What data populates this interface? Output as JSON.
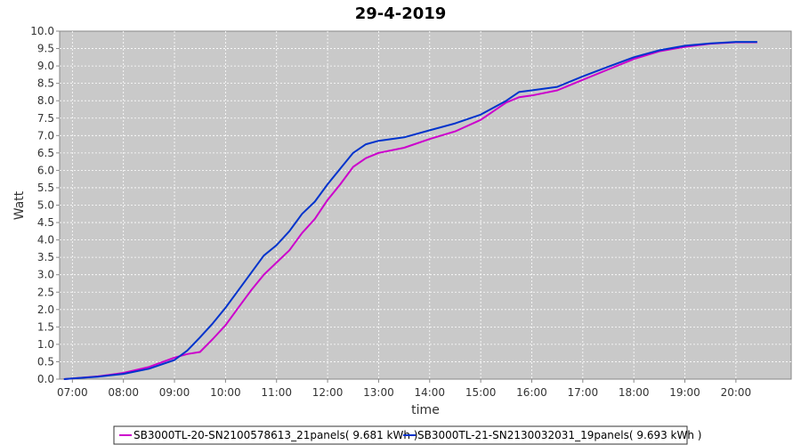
{
  "chart_data": {
    "type": "line",
    "title": "29-4-2019",
    "xlabel": "time",
    "ylabel": "Watt",
    "ylim": [
      0,
      10.0
    ],
    "xlim": [
      "06:45",
      "21:05"
    ],
    "grid": true,
    "legend_position": "bottom",
    "background_color": "#c9c9c9",
    "y_ticks": [
      "0.0",
      "0.5",
      "1.0",
      "1.5",
      "2.0",
      "2.5",
      "3.0",
      "3.5",
      "4.0",
      "4.5",
      "5.0",
      "5.5",
      "6.0",
      "6.5",
      "7.0",
      "7.5",
      "8.0",
      "8.5",
      "9.0",
      "9.5",
      "10.0"
    ],
    "x_ticks": [
      "07:00",
      "08:00",
      "09:00",
      "10:00",
      "11:00",
      "12:00",
      "13:00",
      "14:00",
      "15:00",
      "16:00",
      "17:00",
      "18:00",
      "19:00",
      "20:00"
    ],
    "series": [
      {
        "name": "SB3000TL-20-SN2100578613_21panels( 9.681 kWh )",
        "color": "#cc00cc",
        "x": [
          "06:50",
          "07:00",
          "07:30",
          "08:00",
          "08:30",
          "09:00",
          "09:15",
          "09:30",
          "09:45",
          "10:00",
          "10:15",
          "10:30",
          "10:45",
          "11:00",
          "11:15",
          "11:30",
          "11:45",
          "12:00",
          "12:15",
          "12:30",
          "12:45",
          "13:00",
          "13:30",
          "14:00",
          "14:30",
          "15:00",
          "15:30",
          "15:45",
          "16:00",
          "16:30",
          "17:00",
          "17:30",
          "18:00",
          "18:30",
          "19:00",
          "19:30",
          "20:00",
          "20:25"
        ],
        "values": [
          0.0,
          0.02,
          0.08,
          0.18,
          0.35,
          0.62,
          0.72,
          0.78,
          1.15,
          1.55,
          2.05,
          2.55,
          3.0,
          3.35,
          3.7,
          4.2,
          4.6,
          5.15,
          5.6,
          6.1,
          6.35,
          6.5,
          6.65,
          6.9,
          7.12,
          7.45,
          7.95,
          8.1,
          8.15,
          8.3,
          8.6,
          8.9,
          9.2,
          9.42,
          9.55,
          9.64,
          9.68,
          9.68
        ]
      },
      {
        "name": "SB3000TL-21-SN2130032031_19panels( 9.693 kWh )",
        "color": "#0033cc",
        "x": [
          "06:50",
          "07:00",
          "07:30",
          "08:00",
          "08:30",
          "09:00",
          "09:15",
          "09:30",
          "09:45",
          "10:00",
          "10:15",
          "10:30",
          "10:45",
          "11:00",
          "11:15",
          "11:30",
          "11:45",
          "12:00",
          "12:15",
          "12:30",
          "12:45",
          "13:00",
          "13:30",
          "14:00",
          "14:30",
          "15:00",
          "15:30",
          "15:45",
          "16:00",
          "16:30",
          "17:00",
          "17:30",
          "18:00",
          "18:30",
          "19:00",
          "19:30",
          "20:00",
          "20:25"
        ],
        "values": [
          0.0,
          0.02,
          0.07,
          0.15,
          0.3,
          0.55,
          0.82,
          1.2,
          1.6,
          2.05,
          2.55,
          3.05,
          3.55,
          3.85,
          4.25,
          4.75,
          5.1,
          5.6,
          6.05,
          6.5,
          6.75,
          6.85,
          6.95,
          7.15,
          7.35,
          7.6,
          8.0,
          8.25,
          8.3,
          8.4,
          8.7,
          8.98,
          9.25,
          9.45,
          9.58,
          9.65,
          9.69,
          9.69
        ]
      }
    ]
  }
}
